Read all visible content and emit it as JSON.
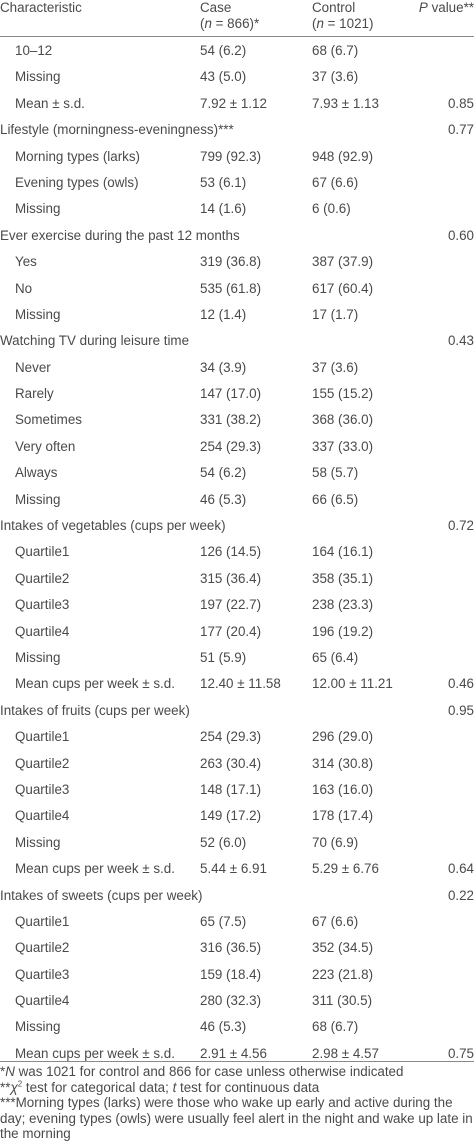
{
  "header": {
    "characteristic": "Characteristic",
    "case_label": "Case",
    "case_n": "(n = 866)*",
    "control_label": "Control",
    "control_n": "(n = 1021)",
    "p_label": "P value**"
  },
  "rows": [
    {
      "label": "10–12",
      "indent": true,
      "case": "54 (6.2)",
      "control": "68 (6.7)",
      "p": ""
    },
    {
      "label": "Missing",
      "indent": true,
      "case": "43 (5.0)",
      "control": "37 (3.6)",
      "p": ""
    },
    {
      "label": "Mean ± s.d.",
      "indent": true,
      "case": "7.92 ± 1.12",
      "control": "7.93 ± 1.13",
      "p": "0.85"
    },
    {
      "label": "Lifestyle (morningness-eveningness)***",
      "indent": false,
      "case": "",
      "control": "",
      "p": "0.77"
    },
    {
      "label": "Morning types (larks)",
      "indent": true,
      "case": "799 (92.3)",
      "control": "948 (92.9)",
      "p": ""
    },
    {
      "label": "Evening types (owls)",
      "indent": true,
      "case": "53 (6.1)",
      "control": "67 (6.6)",
      "p": ""
    },
    {
      "label": "Missing",
      "indent": true,
      "case": "14 (1.6)",
      "control": "6 (0.6)",
      "p": ""
    },
    {
      "label": "Ever exercise during the past 12 months",
      "indent": false,
      "case": "",
      "control": "",
      "p": "0.60"
    },
    {
      "label": "Yes",
      "indent": true,
      "case": "319 (36.8)",
      "control": "387 (37.9)",
      "p": ""
    },
    {
      "label": "No",
      "indent": true,
      "case": "535 (61.8)",
      "control": "617 (60.4)",
      "p": ""
    },
    {
      "label": "Missing",
      "indent": true,
      "case": "12 (1.4)",
      "control": "17 (1.7)",
      "p": ""
    },
    {
      "label": "Watching TV during leisure time",
      "indent": false,
      "case": "",
      "control": "",
      "p": "0.43"
    },
    {
      "label": "Never",
      "indent": true,
      "case": "34 (3.9)",
      "control": "37 (3.6)",
      "p": ""
    },
    {
      "label": "Rarely",
      "indent": true,
      "case": "147 (17.0)",
      "control": "155 (15.2)",
      "p": ""
    },
    {
      "label": "Sometimes",
      "indent": true,
      "case": "331 (38.2)",
      "control": "368 (36.0)",
      "p": ""
    },
    {
      "label": "Very often",
      "indent": true,
      "case": "254 (29.3)",
      "control": "337 (33.0)",
      "p": ""
    },
    {
      "label": "Always",
      "indent": true,
      "case": "54 (6.2)",
      "control": "58 (5.7)",
      "p": ""
    },
    {
      "label": "Missing",
      "indent": true,
      "case": "46 (5.3)",
      "control": "66 (6.5)",
      "p": ""
    },
    {
      "label": "Intakes of vegetables (cups per week)",
      "indent": false,
      "case": "",
      "control": "",
      "p": "0.72"
    },
    {
      "label": "Quartile1",
      "indent": true,
      "case": "126 (14.5)",
      "control": "164 (16.1)",
      "p": ""
    },
    {
      "label": "Quartile2",
      "indent": true,
      "case": "315 (36.4)",
      "control": "358 (35.1)",
      "p": ""
    },
    {
      "label": "Quartile3",
      "indent": true,
      "case": "197 (22.7)",
      "control": "238 (23.3)",
      "p": ""
    },
    {
      "label": "Quartile4",
      "indent": true,
      "case": "177 (20.4)",
      "control": "196 (19.2)",
      "p": ""
    },
    {
      "label": "Missing",
      "indent": true,
      "case": "51 (5.9)",
      "control": "65 (6.4)",
      "p": ""
    },
    {
      "label": "Mean cups per week ± s.d.",
      "indent": true,
      "case": "12.40 ± 11.58",
      "control": "12.00 ± 11.21",
      "p": "0.46"
    },
    {
      "label": "Intakes of fruits (cups per week)",
      "indent": false,
      "case": "",
      "control": "",
      "p": "0.95"
    },
    {
      "label": "Quartile1",
      "indent": true,
      "case": "254 (29.3)",
      "control": "296 (29.0)",
      "p": ""
    },
    {
      "label": "Quartile2",
      "indent": true,
      "case": "263 (30.4)",
      "control": "314 (30.8)",
      "p": ""
    },
    {
      "label": "Quartile3",
      "indent": true,
      "case": "148 (17.1)",
      "control": "163 (16.0)",
      "p": ""
    },
    {
      "label": "Quartile4",
      "indent": true,
      "case": "149 (17.2)",
      "control": "178 (17.4)",
      "p": ""
    },
    {
      "label": "Missing",
      "indent": true,
      "case": "52 (6.0)",
      "control": "70 (6.9)",
      "p": ""
    },
    {
      "label": "Mean cups per week ± s.d.",
      "indent": true,
      "case": "5.44 ± 6.91",
      "control": "5.29 ± 6.76",
      "p": "0.64"
    },
    {
      "label": "Intakes of sweets (cups per week)",
      "indent": false,
      "case": "",
      "control": "",
      "p": "0.22"
    },
    {
      "label": "Quartile1",
      "indent": true,
      "case": "65 (7.5)",
      "control": "67 (6.6)",
      "p": ""
    },
    {
      "label": "Quartile2",
      "indent": true,
      "case": "316 (36.5)",
      "control": "352 (34.5)",
      "p": ""
    },
    {
      "label": "Quartile3",
      "indent": true,
      "case": "159 (18.4)",
      "control": "223 (21.8)",
      "p": ""
    },
    {
      "label": "Quartile4",
      "indent": true,
      "case": "280 (32.3)",
      "control": "311 (30.5)",
      "p": ""
    },
    {
      "label": "Missing",
      "indent": true,
      "case": "46 (5.3)",
      "control": "68 (6.7)",
      "p": ""
    },
    {
      "label": "Mean cups per week ± s.d.",
      "indent": true,
      "case": "2.91 ± 4.56",
      "control": "2.98 ± 4.57",
      "p": "0.75"
    }
  ],
  "footnotes": {
    "n1_prefix": "*",
    "n1_italic": "N",
    "n1_text": " was 1021 for control and 866 for case unless otherwise indicated",
    "n2_prefix": "**",
    "n2_chi": "χ",
    "n2_sup": "2",
    "n2_mid": " test for categorical data; ",
    "n2_t": "t",
    "n2_end": " test for continuous data",
    "n3": "***Morning types (larks) were those who wake up early and active during the day; evening types (owls) were usually feel alert in the night and wake up late in the morning"
  }
}
